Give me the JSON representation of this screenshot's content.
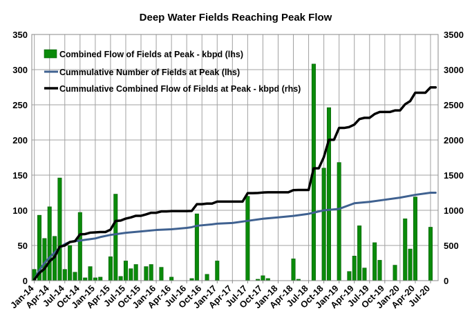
{
  "chart_data": {
    "type": "bar",
    "title": "Deep Water Fields Reaching Peak Flow",
    "xlabel": "",
    "ylabel": "",
    "ylim": [
      0,
      350
    ],
    "y2lim": [
      0,
      3500
    ],
    "y_ticks": [
      "0",
      "50",
      "100",
      "150",
      "200",
      "250",
      "300",
      "350"
    ],
    "y2_ticks": [
      "0",
      "500",
      "1000",
      "1500",
      "2000",
      "2500",
      "3000",
      "3500"
    ],
    "x_tick_labels": [
      "Jan-14",
      "Apr-14",
      "Jul-14",
      "Oct-14",
      "Jan-15",
      "Apr-15",
      "Jul-15",
      "Oct-15",
      "Jan-16",
      "Apr-16",
      "Jul-16",
      "Oct-16",
      "Jan-17",
      "Apr-17",
      "Jul-17",
      "Oct-17",
      "Jan-18",
      "Apr-18",
      "Jul-18",
      "Oct-18",
      "Jan-19",
      "Apr-19",
      "Jul-19",
      "Oct-19",
      "Jan-20",
      "Apr-20",
      "Jul-20"
    ],
    "grid": true,
    "legend_position": "top-left",
    "colors": {
      "bar": "#0a8a0a",
      "bar_edge": "#0b5d0b",
      "count_line": "#3f6190",
      "cumulative_flow_line": "#000000"
    },
    "series": [
      {
        "name": "Combined Flow of Fields at Peak - kbpd (lhs)",
        "type": "bar",
        "axis": "left",
        "values": [
          16,
          93,
          60,
          105,
          63,
          146,
          16,
          50,
          12,
          97,
          4,
          20,
          4,
          5,
          0,
          34,
          123,
          6,
          28,
          17,
          23,
          0,
          20,
          23,
          0,
          19,
          0,
          5,
          0,
          0,
          0,
          3,
          95,
          0,
          9,
          0,
          28,
          0,
          0,
          0,
          0,
          0,
          120,
          0,
          2,
          7,
          3,
          0,
          0,
          0,
          0,
          31,
          2,
          0,
          0,
          308,
          0,
          160,
          246,
          0,
          168,
          0,
          13,
          35,
          78,
          18,
          0,
          54,
          29,
          0,
          0,
          22,
          0,
          88,
          45,
          119,
          0,
          0,
          76,
          0
        ]
      },
      {
        "name": "Cummulative Number of Fields at Peak (lhs)",
        "type": "line",
        "axis": "left",
        "x_month_index": [
          0,
          1,
          2,
          3,
          4,
          5,
          6,
          7,
          8,
          9,
          12,
          13,
          15,
          16,
          18,
          21,
          24,
          27,
          30,
          31,
          32,
          35,
          36,
          39,
          42,
          45,
          48,
          51,
          54,
          57,
          60,
          63,
          66,
          69,
          72,
          75,
          78,
          79
        ],
        "values": [
          2,
          15,
          25,
          33,
          40,
          47,
          52,
          55,
          56,
          57,
          60,
          62,
          65,
          66,
          68,
          70,
          72,
          73,
          75,
          76,
          78,
          80,
          81,
          82,
          85,
          88,
          90,
          92,
          95,
          100,
          102,
          110,
          112,
          115,
          118,
          122,
          125,
          125
        ]
      },
      {
        "name": "Cummulative Combined Flow of Fields at Peak - kbpd (rhs)",
        "type": "line",
        "axis": "right",
        "x_month_index": [
          0,
          1,
          2,
          3,
          4,
          5,
          6,
          7,
          8,
          9,
          10,
          11,
          12,
          13,
          14,
          15,
          16,
          17,
          18,
          19,
          20,
          21,
          22,
          23,
          24,
          25,
          26,
          27,
          28,
          29,
          30,
          31,
          32,
          33,
          34,
          35,
          36,
          37,
          38,
          39,
          40,
          41,
          42,
          43,
          44,
          45,
          46,
          47,
          48,
          49,
          50,
          51,
          52,
          53,
          54,
          55,
          56,
          57,
          58,
          59,
          60,
          61,
          62,
          63,
          64,
          65,
          66,
          67,
          68,
          69,
          70,
          71,
          72,
          73,
          74,
          75,
          76,
          77,
          78,
          79
        ],
        "values": [
          16,
          109,
          169,
          274,
          337,
          483,
          499,
          549,
          561,
          658,
          662,
          682,
          686,
          691,
          691,
          725,
          848,
          854,
          882,
          899,
          922,
          922,
          942,
          965,
          965,
          984,
          984,
          989,
          989,
          989,
          989,
          992,
          1087,
          1087,
          1096,
          1096,
          1124,
          1124,
          1124,
          1124,
          1124,
          1124,
          1244,
          1244,
          1246,
          1253,
          1256,
          1256,
          1256,
          1256,
          1256,
          1287,
          1289,
          1289,
          1289,
          1597,
          1597,
          1757,
          2003,
          2003,
          2171,
          2171,
          2184,
          2219,
          2297,
          2315,
          2315,
          2369,
          2398,
          2398,
          2398,
          2420,
          2420,
          2508,
          2553,
          2672,
          2672,
          2672,
          2748,
          2748
        ]
      }
    ]
  }
}
